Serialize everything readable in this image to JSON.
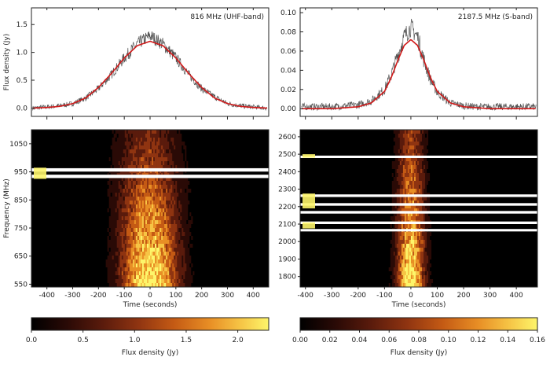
{
  "chart_data": [
    {
      "type": "line",
      "annotation": "816 MHz (UHF-band)",
      "ylabel": "Flux density (Jy)",
      "xlabel": "",
      "xlim": [
        -460,
        460
      ],
      "ylim": [
        -0.15,
        1.8
      ],
      "yticks": [
        0.0,
        0.5,
        1.0,
        1.5
      ],
      "series": [
        {
          "style": "noisy-data",
          "color": "#555555",
          "noise": 0.12,
          "x": [
            -450,
            -400,
            -350,
            -300,
            -250,
            -200,
            -150,
            -100,
            -50,
            0,
            50,
            100,
            150,
            200,
            250,
            300,
            350,
            400,
            450
          ],
          "values": [
            0.0,
            0.02,
            0.04,
            0.08,
            0.18,
            0.35,
            0.6,
            0.9,
            1.15,
            1.3,
            1.15,
            0.9,
            0.6,
            0.35,
            0.2,
            0.08,
            0.04,
            0.02,
            0.0
          ]
        },
        {
          "style": "model",
          "color": "#d11a1a",
          "x": [
            -450,
            -400,
            -350,
            -300,
            -250,
            -200,
            -150,
            -100,
            -50,
            0,
            50,
            100,
            150,
            200,
            250,
            300,
            350,
            400,
            450
          ],
          "values": [
            0.0,
            0.01,
            0.03,
            0.08,
            0.18,
            0.37,
            0.62,
            0.9,
            1.12,
            1.2,
            1.12,
            0.9,
            0.62,
            0.37,
            0.18,
            0.08,
            0.03,
            0.01,
            0.0
          ]
        }
      ]
    },
    {
      "type": "line",
      "annotation": "2187.5 MHz (S-band)",
      "ylabel": "",
      "xlabel": "",
      "xlim": [
        -420,
        480
      ],
      "ylim": [
        -0.008,
        0.105
      ],
      "yticks": [
        0.0,
        0.02,
        0.04,
        0.06,
        0.08,
        0.1
      ],
      "yticklabels": [
        "0.00",
        "0.02",
        "0.04",
        "0.06",
        "0.08",
        "0.10"
      ],
      "series": [
        {
          "style": "noisy-data",
          "color": "#555555",
          "noise": 0.01,
          "x": [
            -420,
            -350,
            -300,
            -250,
            -200,
            -150,
            -100,
            -75,
            -50,
            -25,
            0,
            25,
            50,
            75,
            100,
            150,
            200,
            250,
            300,
            350,
            400,
            480
          ],
          "values": [
            0.002,
            0.002,
            0.002,
            0.003,
            0.004,
            0.008,
            0.02,
            0.035,
            0.055,
            0.075,
            0.085,
            0.075,
            0.05,
            0.03,
            0.017,
            0.006,
            0.003,
            0.002,
            0.002,
            0.002,
            0.002,
            0.002
          ]
        },
        {
          "style": "model",
          "color": "#d11a1a",
          "x": [
            -420,
            -350,
            -300,
            -250,
            -200,
            -150,
            -100,
            -75,
            -50,
            -25,
            0,
            25,
            50,
            75,
            100,
            150,
            200,
            250,
            300,
            350,
            400,
            480
          ],
          "values": [
            0.0,
            0.0,
            0.0,
            0.001,
            0.002,
            0.006,
            0.018,
            0.032,
            0.05,
            0.066,
            0.072,
            0.066,
            0.05,
            0.032,
            0.018,
            0.006,
            0.002,
            0.001,
            0.0,
            0.0,
            0.0,
            0.0
          ]
        }
      ]
    },
    {
      "type": "heatmap",
      "xlabel": "Time (seconds)",
      "ylabel": "Frequency (MHz)",
      "xlim": [
        -460,
        460
      ],
      "ylim": [
        540,
        1100
      ],
      "xticks": [
        -400,
        -300,
        -200,
        -100,
        0,
        100,
        200,
        300,
        400
      ],
      "yticks": [
        550,
        650,
        750,
        850,
        950,
        1050
      ],
      "masked_bands_mhz": [
        [
          951,
          963
        ],
        [
          928,
          940
        ]
      ],
      "yellow_marks_mhz": [
        [
          925,
          965
        ]
      ],
      "colorscale": [
        "#000000",
        "#2a0a06",
        "#5a1b0c",
        "#8f3411",
        "#c45a14",
        "#e88e25",
        "#f6c445",
        "#fdf56a"
      ],
      "colorbar": {
        "label": "Flux density (Jy)",
        "ticks": [
          0.0,
          0.5,
          1.0,
          1.5,
          2.0
        ],
        "ticklabels": [
          "0.0",
          "0.5",
          "1.0",
          "1.5",
          "2.0"
        ],
        "range": [
          0,
          2.3
        ]
      }
    },
    {
      "type": "heatmap",
      "xlabel": "Time (seconds)",
      "ylabel": "",
      "xlim": [
        -420,
        480
      ],
      "ylim": [
        1740,
        2640
      ],
      "xticks": [
        -400,
        -300,
        -200,
        -100,
        0,
        100,
        200,
        300,
        400
      ],
      "yticks": [
        1800,
        1900,
        2000,
        2100,
        2200,
        2300,
        2400,
        2500,
        2600
      ],
      "masked_bands_mhz": [
        [
          2478,
          2492
        ],
        [
          2255,
          2270
        ],
        [
          2205,
          2220
        ],
        [
          2160,
          2175
        ],
        [
          2100,
          2115
        ],
        [
          2058,
          2072
        ]
      ],
      "yellow_marks_mhz": [
        [
          2480,
          2500
        ],
        [
          2190,
          2275
        ],
        [
          2075,
          2110
        ]
      ],
      "colorscale": [
        "#000000",
        "#2a0a06",
        "#5a1b0c",
        "#8f3411",
        "#c45a14",
        "#e88e25",
        "#f6c445",
        "#fdf56a"
      ],
      "colorbar": {
        "label": "Flux density (Jy)",
        "ticks": [
          0.0,
          0.02,
          0.04,
          0.06,
          0.08,
          0.1,
          0.12,
          0.14,
          0.16
        ],
        "ticklabels": [
          "0.00",
          "0.02",
          "0.04",
          "0.06",
          "0.08",
          "0.10",
          "0.12",
          "0.14",
          "0.16"
        ],
        "range": [
          0,
          0.16
        ]
      }
    }
  ]
}
